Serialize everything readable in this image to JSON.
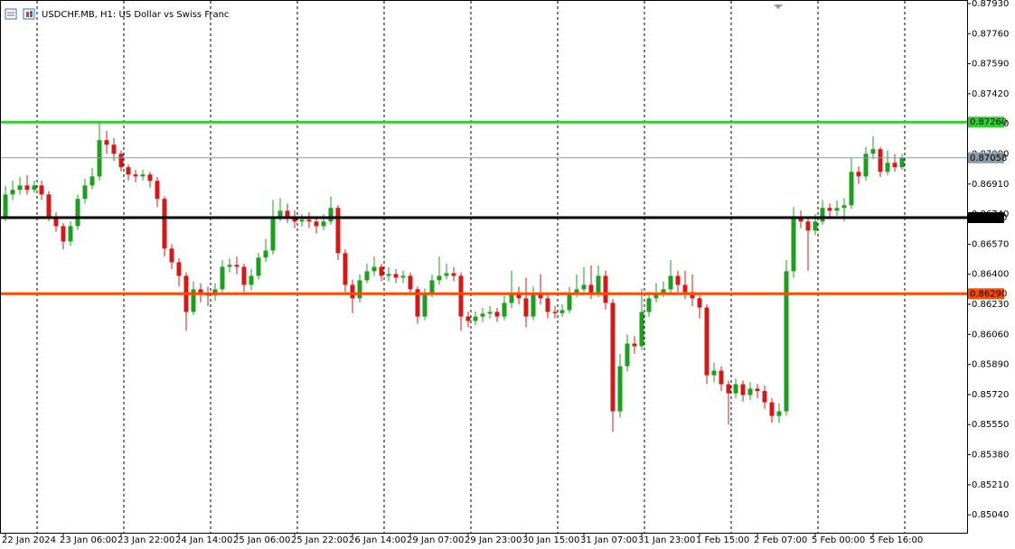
{
  "chart_data": {
    "type": "candlestick",
    "title": "USDCHF.MB, H1:  US Dollar vs Swiss Franc",
    "categories": [
      "22 Jan 2024",
      null,
      null,
      null,
      null,
      null,
      null,
      null,
      "23 Jan 06:00",
      null,
      null,
      null,
      null,
      null,
      null,
      null,
      "23 Jan 22:00",
      null,
      null,
      null,
      null,
      null,
      null,
      null,
      "24 Jan 14:00",
      null,
      null,
      null,
      null,
      null,
      null,
      null,
      "25 Jan 06:00",
      null,
      null,
      null,
      null,
      null,
      null,
      null,
      "25 Jan 22:00",
      null,
      null,
      null,
      null,
      null,
      null,
      null,
      "26 Jan 14:00",
      null,
      null,
      null,
      null,
      null,
      null,
      null,
      "29 Jan 07:00",
      null,
      null,
      null,
      null,
      null,
      null,
      null,
      "29 Jan 23:00",
      null,
      null,
      null,
      null,
      null,
      null,
      null,
      "30 Jan 15:00",
      null,
      null,
      null,
      null,
      null,
      null,
      null,
      "31 Jan 07:00",
      null,
      null,
      null,
      null,
      null,
      null,
      null,
      "31 Jan 23:00",
      null,
      null,
      null,
      null,
      null,
      null,
      null,
      "1 Feb 15:00",
      null,
      null,
      null,
      null,
      null,
      null,
      null,
      "2 Feb 07:00",
      null,
      null,
      null,
      null,
      null,
      null,
      null,
      "5 Feb 00:00",
      null,
      null,
      null,
      null,
      null,
      null,
      null,
      "5 Feb 16:00",
      null,
      null,
      null,
      null
    ],
    "open": [
      0.8672,
      0.86851,
      0.86877,
      0.86902,
      0.86877,
      0.86902,
      0.86851,
      0.86723,
      0.86672,
      0.86585,
      0.86672,
      0.86826,
      0.86902,
      0.86953,
      0.87158,
      0.87132,
      0.87081,
      0.87005,
      0.86964,
      0.86953,
      0.86964,
      0.86928,
      0.86826,
      0.86545,
      0.86468,
      0.86391,
      0.86187,
      0.86315,
      0.86289,
      0.8628,
      0.86315,
      0.86442,
      0.86453,
      0.86442,
      0.8634,
      0.86391,
      0.86494,
      0.86534,
      0.86723,
      0.86759,
      0.86723,
      0.86698,
      0.86708,
      0.86698,
      0.86672,
      0.86698,
      0.86775,
      0.86519,
      0.8634,
      0.86264,
      0.86366,
      0.86417,
      0.86442,
      0.86391,
      0.86401,
      0.86381,
      0.86391,
      0.86315,
      0.86161,
      0.86289,
      0.86366,
      0.86391,
      0.86406,
      0.86391,
      0.86161,
      0.86136,
      0.86161,
      0.86177,
      0.86187,
      0.86161,
      0.86238,
      0.86289,
      0.86264,
      0.86161,
      0.86289,
      0.86264,
      0.86187,
      0.8618,
      0.86197,
      0.86289,
      0.86315,
      0.8634,
      0.86289,
      0.86391,
      0.86238,
      0.85625,
      0.8588,
      0.86008,
      0.85993,
      0.86187,
      0.86264,
      0.86289,
      0.86315,
      0.86391,
      0.8634,
      0.86299,
      0.86264,
      0.86212,
      0.85829,
      0.85855,
      0.85778,
      0.85727,
      0.85778,
      0.85717,
      0.85753,
      0.8574,
      0.85676,
      0.85599,
      0.85625,
      0.86417,
      0.86723,
      0.86698,
      0.86647,
      0.86698,
      0.86775,
      0.86759,
      0.86775,
      0.8679,
      0.86979,
      0.86953,
      0.87081,
      0.87107,
      0.86979,
      0.8703,
      0.87005
    ],
    "high": [
      0.869,
      0.8693,
      0.8695,
      0.8696,
      0.8693,
      0.8693,
      0.8687,
      0.8675,
      0.8669,
      0.867,
      0.8685,
      0.8694,
      0.87,
      0.8726,
      0.8721,
      0.8717,
      0.871,
      0.8702,
      0.8699,
      0.8699,
      0.8698,
      0.8695,
      0.8684,
      0.8657,
      0.8649,
      0.8641,
      0.8636,
      0.8635,
      0.8633,
      0.8635,
      0.8648,
      0.8649,
      0.865,
      0.8646,
      0.8643,
      0.8652,
      0.866,
      0.8682,
      0.8683,
      0.868,
      0.8676,
      0.8674,
      0.8675,
      0.8672,
      0.8674,
      0.8684,
      0.8679,
      0.8654,
      0.8637,
      0.864,
      0.8646,
      0.865,
      0.8646,
      0.8644,
      0.8643,
      0.8642,
      0.8641,
      0.8633,
      0.8632,
      0.864,
      0.865,
      0.8646,
      0.8644,
      0.8641,
      0.8619,
      0.8619,
      0.8621,
      0.8622,
      0.8621,
      0.8628,
      0.8642,
      0.8633,
      0.8638,
      0.8633,
      0.864,
      0.8629,
      0.8622,
      0.8623,
      0.8633,
      0.864,
      0.8644,
      0.8645,
      0.8645,
      0.8642,
      0.8626,
      0.8595,
      0.8606,
      0.8605,
      0.8632,
      0.863,
      0.8635,
      0.8636,
      0.8648,
      0.8642,
      0.8642,
      0.864,
      0.8629,
      0.8623,
      0.859,
      0.8588,
      0.858,
      0.8581,
      0.858,
      0.8579,
      0.8578,
      0.8577,
      0.857,
      0.8567,
      0.8648,
      0.8678,
      0.8676,
      0.8672,
      0.8674,
      0.8682,
      0.868,
      0.8682,
      0.8683,
      0.8706,
      0.8701,
      0.8712,
      0.8718,
      0.8712,
      0.871,
      0.8708,
      0.8708
    ],
    "low": [
      0.867,
      0.8682,
      0.8685,
      0.8685,
      0.8686,
      0.8682,
      0.867,
      0.8664,
      0.8654,
      0.8656,
      0.8665,
      0.868,
      0.8688,
      0.8693,
      0.8708,
      0.8704,
      0.8698,
      0.8693,
      0.8692,
      0.8693,
      0.8689,
      0.8678,
      0.865,
      0.8643,
      0.8633,
      0.8608,
      0.8617,
      0.8624,
      0.8622,
      0.8625,
      0.863,
      0.8641,
      0.864,
      0.863,
      0.8631,
      0.8637,
      0.8647,
      0.8651,
      0.867,
      0.8669,
      0.8666,
      0.8667,
      0.8666,
      0.8663,
      0.8665,
      0.8668,
      0.8648,
      0.863,
      0.8618,
      0.8624,
      0.8635,
      0.8639,
      0.8636,
      0.8636,
      0.8635,
      0.8635,
      0.8628,
      0.8612,
      0.8614,
      0.8627,
      0.8634,
      0.8637,
      0.8636,
      0.8608,
      0.861,
      0.8611,
      0.8613,
      0.8615,
      0.8613,
      0.8614,
      0.8621,
      0.8623,
      0.861,
      0.8614,
      0.8623,
      0.8615,
      0.8615,
      0.8616,
      0.8618,
      0.8627,
      0.863,
      0.8626,
      0.8627,
      0.862,
      0.8551,
      0.8559,
      0.8585,
      0.8595,
      0.8597,
      0.8616,
      0.8624,
      0.8627,
      0.8629,
      0.863,
      0.8626,
      0.8622,
      0.8615,
      0.8578,
      0.8579,
      0.8574,
      0.8555,
      0.857,
      0.8568,
      0.8569,
      0.857,
      0.8564,
      0.8556,
      0.8556,
      0.856,
      0.8638,
      0.8666,
      0.8642,
      0.8662,
      0.8668,
      0.8672,
      0.8673,
      0.867,
      0.8677,
      0.8691,
      0.8693,
      0.8705,
      0.8695,
      0.8696,
      0.8698,
      0.8699
    ],
    "close": [
      0.86851,
      0.86877,
      0.86902,
      0.86877,
      0.86902,
      0.86851,
      0.86723,
      0.86672,
      0.86585,
      0.86672,
      0.86826,
      0.86902,
      0.86953,
      0.87158,
      0.87132,
      0.87081,
      0.87005,
      0.86964,
      0.86953,
      0.86964,
      0.86928,
      0.86826,
      0.86545,
      0.86468,
      0.86391,
      0.86187,
      0.86315,
      0.86289,
      0.8628,
      0.86315,
      0.86442,
      0.86453,
      0.86442,
      0.8634,
      0.86391,
      0.86494,
      0.86534,
      0.86723,
      0.86759,
      0.86723,
      0.86698,
      0.86708,
      0.86698,
      0.86672,
      0.86698,
      0.86775,
      0.86519,
      0.8634,
      0.86264,
      0.86366,
      0.86417,
      0.86442,
      0.86391,
      0.86401,
      0.86381,
      0.86391,
      0.86315,
      0.86161,
      0.86289,
      0.86366,
      0.86391,
      0.86406,
      0.86391,
      0.86161,
      0.86136,
      0.86161,
      0.86177,
      0.86187,
      0.86161,
      0.86238,
      0.86289,
      0.86264,
      0.86161,
      0.86289,
      0.86264,
      0.86187,
      0.8618,
      0.86197,
      0.86289,
      0.86315,
      0.8634,
      0.86289,
      0.86391,
      0.86238,
      0.85625,
      0.8588,
      0.86008,
      0.85993,
      0.86187,
      0.86264,
      0.86289,
      0.86315,
      0.86391,
      0.8634,
      0.86299,
      0.86264,
      0.86212,
      0.85829,
      0.85855,
      0.85778,
      0.85727,
      0.85778,
      0.85717,
      0.85753,
      0.8574,
      0.85676,
      0.85599,
      0.85625,
      0.86417,
      0.86723,
      0.86698,
      0.86647,
      0.86698,
      0.86775,
      0.86759,
      0.86775,
      0.8679,
      0.86979,
      0.86953,
      0.87081,
      0.87107,
      0.86979,
      0.8703,
      0.87005,
      0.87058
    ],
    "up_color": "#1f9e1f",
    "down_color": "#d11a1a",
    "ylim": [
      0.85,
      0.8794
    ],
    "yticks": [
      {
        "value": 0.8793,
        "label": "0.87930"
      },
      {
        "value": 0.8776,
        "label": "0.87760"
      },
      {
        "value": 0.8759,
        "label": "0.87590"
      },
      {
        "value": 0.8742,
        "label": "0.87420"
      },
      {
        "value": 0.8725,
        "label": "0.87250"
      },
      {
        "value": 0.8708,
        "label": "0.87080"
      },
      {
        "value": 0.8691,
        "label": "0.86910"
      },
      {
        "value": 0.8674,
        "label": "0.86740"
      },
      {
        "value": 0.8657,
        "label": "0.86570"
      },
      {
        "value": 0.864,
        "label": "0.86400"
      },
      {
        "value": 0.8623,
        "label": "0.86230"
      },
      {
        "value": 0.8606,
        "label": "0.86060"
      },
      {
        "value": 0.8589,
        "label": "0.85890"
      },
      {
        "value": 0.8572,
        "label": "0.85720"
      },
      {
        "value": 0.8555,
        "label": "0.85550"
      },
      {
        "value": 0.8538,
        "label": "0.85380"
      },
      {
        "value": 0.8521,
        "label": "0.85210"
      },
      {
        "value": 0.8504,
        "label": "0.85040"
      }
    ],
    "levels": [
      {
        "value": 0.8726,
        "label": "0.87260",
        "color": "#33cc33"
      },
      {
        "value": 0.8672,
        "label": "0.86720",
        "color": "#000000"
      },
      {
        "value": 0.8629,
        "label": "0.86290",
        "color": "#ff4a00"
      }
    ],
    "current_price": {
      "value": 0.87058,
      "label": "0.87058",
      "color": "#8c9aa6"
    }
  }
}
